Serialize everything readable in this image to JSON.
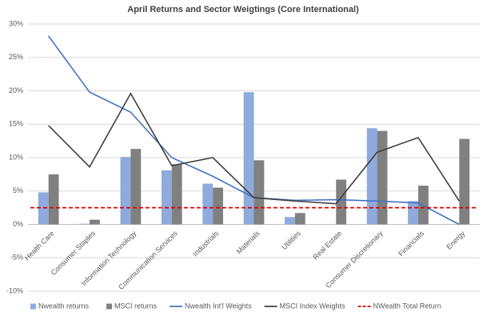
{
  "chart_data": {
    "type": "bar",
    "title": "April Returns and Sector Weigtings (Core International)",
    "categories": [
      "Health Care",
      "Consumer Staples",
      "Information Technology",
      "Communication Services",
      "Industrials",
      "Materials",
      "Utilities",
      "Real Estate",
      "Consumer Discretionary",
      "Financials",
      "Energy"
    ],
    "series": [
      {
        "name": "Nwealth returns",
        "type": "bar",
        "color": "#8faadc",
        "values": [
          4.8,
          0.1,
          10.1,
          8.1,
          6.1,
          19.8,
          1.1,
          0,
          14.4,
          3.5,
          0
        ]
      },
      {
        "name": "MSCI returns",
        "type": "bar",
        "color": "#808080",
        "values": [
          7.5,
          0.7,
          11.3,
          9.0,
          5.5,
          9.6,
          1.7,
          6.7,
          14.0,
          5.8,
          12.8
        ]
      },
      {
        "name": "Nwealth Int'l Weights",
        "type": "line",
        "color": "#4472c4",
        "values": [
          28.2,
          19.8,
          16.8,
          10.0,
          7.2,
          4.0,
          3.6,
          3.7,
          3.5,
          3.2,
          0
        ]
      },
      {
        "name": "MSCI Index Weights",
        "type": "line",
        "color": "#404040",
        "values": [
          14.8,
          8.6,
          19.6,
          8.8,
          10.0,
          4.0,
          3.5,
          3.1,
          10.8,
          13.0,
          3.5
        ]
      },
      {
        "name": "NWealth Total Return",
        "type": "hline",
        "color": "#e00000",
        "value": 2.5
      }
    ],
    "ylim": [
      -10,
      30
    ],
    "yticks": [
      {
        "value": -10,
        "label": "-10%"
      },
      {
        "value": -5,
        "label": "-5%"
      },
      {
        "value": 0,
        "label": "0%"
      },
      {
        "value": 5,
        "label": "5%"
      },
      {
        "value": 10,
        "label": "10%"
      },
      {
        "value": 15,
        "label": "15%"
      },
      {
        "value": 20,
        "label": "20%"
      },
      {
        "value": 25,
        "label": "25%"
      },
      {
        "value": 30,
        "label": "30%"
      }
    ],
    "grid": true,
    "legend": "bottom"
  }
}
